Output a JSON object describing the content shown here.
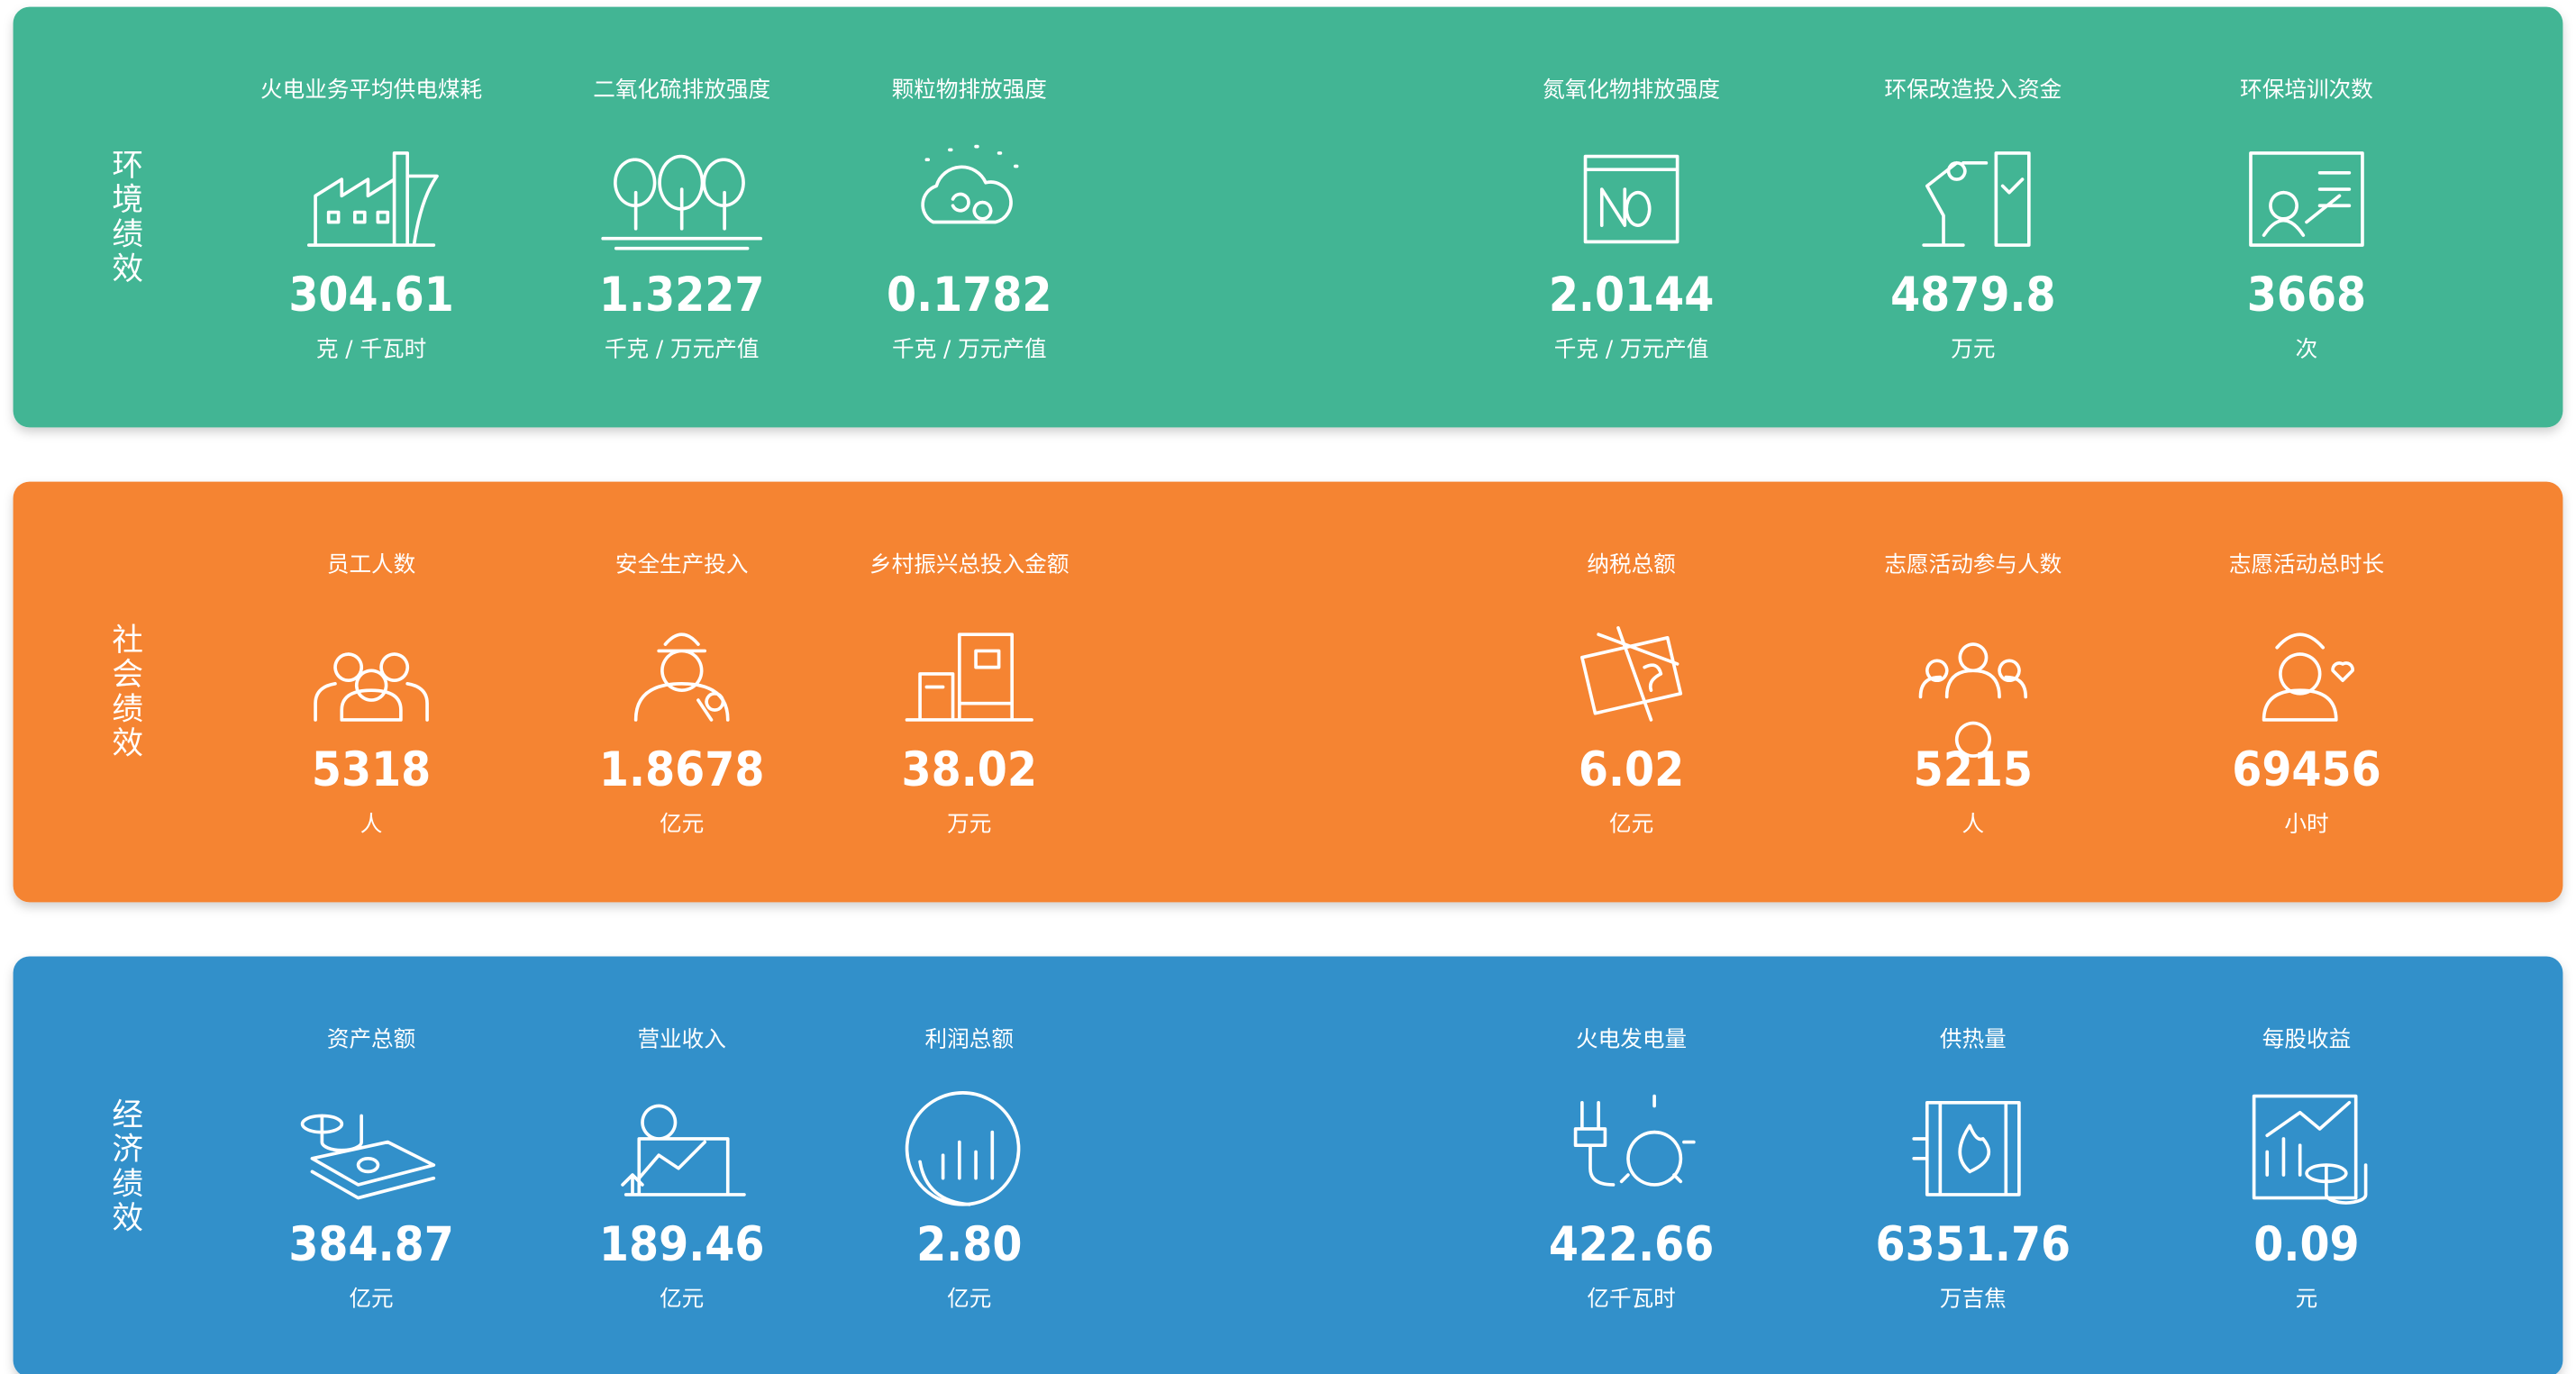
{
  "panels": [
    {
      "label": "环境绩效",
      "color": "#42b594",
      "items": [
        {
          "title": "火电业务平均供电煤耗",
          "value": "304.61",
          "unit": "克 / 千瓦时"
        },
        {
          "title": "二氧化硫排放强度",
          "value": "1.3227",
          "unit": "千克 / 万元产值"
        },
        {
          "title": "颗粒物排放强度",
          "value": "0.1782",
          "unit": "千克 / 万元产值"
        },
        {
          "title": "氮氧化物排放强度",
          "value": "2.0144",
          "unit": "千克 / 万元产值"
        },
        {
          "title": "环保改造投入资金",
          "value": "4879.8",
          "unit": "万元"
        },
        {
          "title": "环保培训次数",
          "value": "3668",
          "unit": "次"
        }
      ]
    },
    {
      "label": "社会绩效",
      "color": "#f58430",
      "items": [
        {
          "title": "员工人数",
          "value": "5318",
          "unit": "人"
        },
        {
          "title": "安全生产投入",
          "value": "1.8678",
          "unit": "亿元"
        },
        {
          "title": "乡村振兴总投入金额",
          "value": "38.02",
          "unit": "万元"
        },
        {
          "title": "纳税总额",
          "value": "6.02",
          "unit": "亿元"
        },
        {
          "title": "志愿活动参与人数",
          "value": "5215",
          "unit": "人"
        },
        {
          "title": "志愿活动总时长",
          "value": "69456",
          "unit": "小时"
        }
      ]
    },
    {
      "label": "经济绩效",
      "color": "#3390ca",
      "items": [
        {
          "title": "资产总额",
          "value": "384.87",
          "unit": "亿元"
        },
        {
          "title": "营业收入",
          "value": "189.46",
          "unit": "亿元"
        },
        {
          "title": "利润总额",
          "value": "2.80",
          "unit": "亿元"
        },
        {
          "title": "火电发电量",
          "value": "422.66",
          "unit": "亿千瓦时"
        },
        {
          "title": "供热量",
          "value": "6351.76",
          "unit": "万吉焦"
        },
        {
          "title": "每股收益",
          "value": "0.09",
          "unit": "元"
        }
      ]
    }
  ]
}
